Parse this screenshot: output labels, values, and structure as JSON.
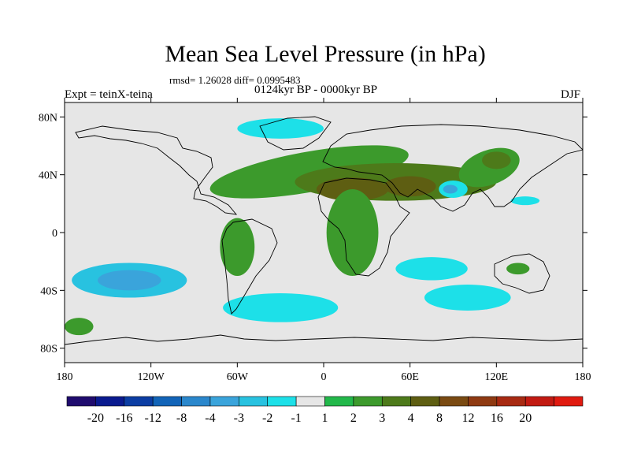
{
  "header": {
    "title": "Mean Sea Level Pressure (in hPa)",
    "stats": "rmsd= 1.26028 diff= 0.0995483",
    "subtitle": "0124kyr BP - 0000kyr BP",
    "expt": "Expt = teinX-teina",
    "season": "DJF"
  },
  "chart_data": {
    "type": "heatmap",
    "title": "Mean Sea Level Pressure (in hPa)",
    "subtitle": "0124kyr BP - 0000kyr BP",
    "x_range": [
      -180,
      180
    ],
    "y_range": [
      -90,
      90
    ],
    "x_ticks": [
      {
        "value": -180,
        "label": "180"
      },
      {
        "value": -120,
        "label": "120W"
      },
      {
        "value": -60,
        "label": "60W"
      },
      {
        "value": 0,
        "label": "0"
      },
      {
        "value": 60,
        "label": "60E"
      },
      {
        "value": 120,
        "label": "120E"
      },
      {
        "value": 180,
        "label": "180"
      }
    ],
    "y_ticks": [
      {
        "value": 80,
        "label": "80N"
      },
      {
        "value": 40,
        "label": "40N"
      },
      {
        "value": 0,
        "label": "0"
      },
      {
        "value": -40,
        "label": "40S"
      },
      {
        "value": -80,
        "label": "80S"
      }
    ],
    "colorbar": {
      "colors": [
        "#1f0b6e",
        "#0a1a8f",
        "#0b3da3",
        "#1264b8",
        "#2a87cc",
        "#3aa4db",
        "#28c2e0",
        "#1de0e8",
        "#e6e6e6",
        "#22b84a",
        "#3c9a2c",
        "#4d7a1a",
        "#5e5e12",
        "#7a4a12",
        "#8f3a12",
        "#a82a12",
        "#c21a12",
        "#e01a10"
      ],
      "labels": [
        "-20",
        "-16",
        "-12",
        "-8",
        "-4",
        "-3",
        "-2",
        "-1",
        "1",
        "2",
        "3",
        "4",
        "8",
        "12",
        "16",
        "20"
      ]
    },
    "anomaly_regions": [
      {
        "name": "north-atlantic-high",
        "level": 2,
        "lon": -10,
        "lat": 42,
        "rx": 70,
        "ry": 14,
        "rot": -10
      },
      {
        "name": "eurasia-high",
        "level": 3,
        "lon": 50,
        "lat": 35,
        "rx": 70,
        "ry": 13,
        "rot": 0
      },
      {
        "name": "sahara-high",
        "level": 4,
        "lon": 20,
        "lat": 30,
        "rx": 25,
        "ry": 8,
        "rot": 0
      },
      {
        "name": "central-asia-high",
        "level": 4,
        "lon": 60,
        "lat": 32,
        "rx": 18,
        "ry": 7,
        "rot": 0
      },
      {
        "name": "africa-high",
        "level": 2,
        "lon": 20,
        "lat": 0,
        "rx": 18,
        "ry": 30,
        "rot": 0
      },
      {
        "name": "east-asia-high",
        "level": 2,
        "lon": 115,
        "lat": 45,
        "rx": 22,
        "ry": 12,
        "rot": -20
      },
      {
        "name": "east-asia-core",
        "level": 3,
        "lon": 120,
        "lat": 50,
        "rx": 10,
        "ry": 6,
        "rot": 0
      },
      {
        "name": "south-america-high",
        "level": 2,
        "lon": -60,
        "lat": -10,
        "rx": 12,
        "ry": 20,
        "rot": 0
      },
      {
        "name": "south-pacific-low",
        "level": -2,
        "lon": -135,
        "lat": -33,
        "rx": 40,
        "ry": 12,
        "rot": 0
      },
      {
        "name": "south-pacific-core",
        "level": -3,
        "lon": -135,
        "lat": -33,
        "rx": 22,
        "ry": 7,
        "rot": 0
      },
      {
        "name": "south-atlantic-low",
        "level": -1,
        "lon": -30,
        "lat": -52,
        "rx": 40,
        "ry": 10,
        "rot": 0
      },
      {
        "name": "indian-ocean-low",
        "level": -1,
        "lon": 75,
        "lat": -25,
        "rx": 25,
        "ry": 8,
        "rot": 0
      },
      {
        "name": "southern-indian-low",
        "level": -1,
        "lon": 100,
        "lat": -45,
        "rx": 30,
        "ry": 9,
        "rot": 0
      },
      {
        "name": "tibet-low",
        "level": -1,
        "lon": 90,
        "lat": 30,
        "rx": 10,
        "ry": 6,
        "rot": 0
      },
      {
        "name": "tibet-low-core",
        "level": -3,
        "lon": 88,
        "lat": 30,
        "rx": 5,
        "ry": 3,
        "rot": 0
      },
      {
        "name": "arctic-low",
        "level": -1,
        "lon": -30,
        "lat": 72,
        "rx": 30,
        "ry": 7,
        "rot": 0
      },
      {
        "name": "pacific-low",
        "level": -1,
        "lon": 140,
        "lat": 22,
        "rx": 10,
        "ry": 3,
        "rot": 0
      },
      {
        "name": "australia-high",
        "level": 2,
        "lon": 135,
        "lat": -25,
        "rx": 8,
        "ry": 4,
        "rot": 0
      },
      {
        "name": "far-south-high",
        "level": 2,
        "lon": -170,
        "lat": -65,
        "rx": 10,
        "ry": 6,
        "rot": 0
      }
    ]
  }
}
